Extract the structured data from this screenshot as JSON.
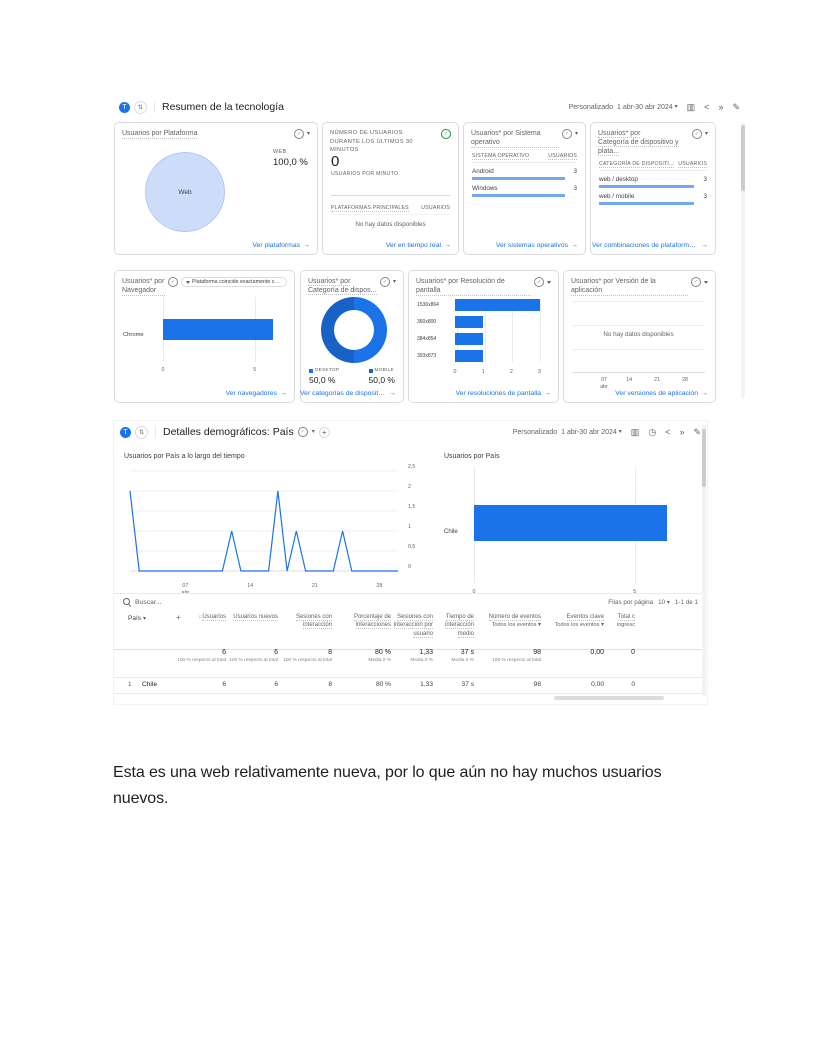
{
  "icons": {
    "arrow_right": "→",
    "caret_down": "▾",
    "check": "✓",
    "plus": "+",
    "sort_desc": "↓",
    "columns": "▥",
    "share": "<",
    "insights": "»",
    "edit": "✎",
    "clock": "◷",
    "swap": "⇅",
    "dot": "▪"
  },
  "colors": {
    "accent": "#1a73e8",
    "bar": "#1a73e8",
    "bar_soft": "rgba(26,115,232,0.62)",
    "pie_fill": "#cdddf9",
    "pie_edge": "#b2cbf5",
    "donut_right": "#1a73e8",
    "donut_left": "#1862c6",
    "link": "#1a73e8",
    "realtime_green": "#1e8e3e"
  },
  "caption": "Esta es una web relativamente nueva, por lo que aún no hay muchos usuarios nuevos.",
  "report1": {
    "avatar_letter": "T",
    "title": "Resumen de la tecnología",
    "personalizado": "Personalizado",
    "date_range": "1 abr-30 abr 2024",
    "platform_card": {
      "title": "Usuarios por Plataforma",
      "slice": "Web",
      "legend_label": "WEB",
      "legend_value": "100,0 %",
      "link": "Ver plataformas"
    },
    "realtime_card": {
      "title": "NÚMERO DE USUARIOS DURANTE LOS ÚLTIMOS 30 MINUTOS",
      "big_value": "0",
      "big_label": "USUARIOS POR MINUTO",
      "col1": "PLATAFORMAS PRINCIPALES",
      "col2": "USUARIOS",
      "empty": "No hay datos disponibles",
      "link": "Ver en tiempo real"
    },
    "os_card": {
      "title": "Usuarios* por Sistema operativo",
      "col1": "SISTEMA OPERATIVO",
      "col2": "USUARIOS",
      "rows": [
        {
          "label": "Android",
          "value": "3",
          "num": 3
        },
        {
          "label": "Windows",
          "value": "3",
          "num": 3
        }
      ],
      "axis_max": 3.4,
      "link": "Ver sistemas operativos"
    },
    "combo_card": {
      "title1": "Usuarios* por",
      "title2": "Categoría de dispositivo y plata...",
      "col1": "CATEGORÍA DE DISPOSITI...",
      "col2": "USUARIOS",
      "rows": [
        {
          "label": "web / desktop",
          "value": "3",
          "num": 3
        },
        {
          "label": "web / mobile",
          "value": "3",
          "num": 3
        }
      ],
      "axis_max": 3.4,
      "link": "Ver combinaciones de plataformas y dispositi..."
    },
    "browser_card": {
      "title": "Usuarios* por Navegador",
      "chip": "Plataforma coincide exactamente con ...",
      "rows": [
        {
          "label": "Chrome",
          "num": 6
        }
      ],
      "axis_max": 6.6,
      "ticks": [
        "0",
        "5"
      ],
      "link": "Ver navegadores"
    },
    "devcat_card": {
      "title1": "Usuarios* por",
      "title2": "Categoría de dispos...",
      "legend": [
        {
          "label": "DESKTOP",
          "value": "50,0 %"
        },
        {
          "label": "MOBILE",
          "value": "50,0 %"
        }
      ],
      "link": "Ver categorías de dispositivo"
    },
    "resolution_card": {
      "title": "Usuarios* por Resolución de pantalla",
      "rows": [
        {
          "label": "1536x864",
          "num": 3
        },
        {
          "label": "360x800",
          "num": 1
        },
        {
          "label": "384x854",
          "num": 1
        },
        {
          "label": "393x873",
          "num": 1
        }
      ],
      "axis_max": 3.3,
      "ticks": [
        "0",
        "1",
        "2",
        "3"
      ],
      "link": "Ver resoluciones de pantalla"
    },
    "appver_card": {
      "title": "Usuarios* por Versión de la aplicación",
      "empty": "No hay datos disponibles",
      "ticks": [
        {
          "a": "07",
          "b": "abr"
        },
        {
          "a": "14"
        },
        {
          "a": "21"
        },
        {
          "a": "28"
        }
      ],
      "link": "Ver versiones de aplicación"
    }
  },
  "report2": {
    "avatar_letter": "T",
    "title": "Detalles demográficos: País",
    "personalizado": "Personalizado",
    "date_range": "1 abr-30 abr 2024",
    "line_chart": {
      "title": "Usuarios por País a lo largo del tiempo",
      "y_ticks": [
        "2,5",
        "2",
        "1,5",
        "1",
        "0,5",
        "0"
      ],
      "y_max": 2.5,
      "x_ticks": [
        {
          "a": "07",
          "b": "abr"
        },
        {
          "a": "14"
        },
        {
          "a": "21"
        },
        {
          "a": "28"
        }
      ],
      "values": [
        2,
        0,
        0,
        0,
        0,
        0,
        0,
        0,
        0,
        0,
        0,
        1,
        0,
        0,
        0,
        0,
        2,
        0,
        1,
        0,
        0,
        0,
        0,
        1,
        0,
        0,
        0,
        0,
        0,
        0
      ]
    },
    "bar_chart": {
      "title": "Usuarios por País",
      "rows": [
        {
          "label": "Chile",
          "num": 6
        }
      ],
      "axis_max": 6.6,
      "ticks": [
        "0",
        "5"
      ]
    },
    "table": {
      "search": "Buscar...",
      "rows_per_page_label": "Filas por página",
      "rows_per_page": "10",
      "range_label": "1-1 de 1",
      "dim": "País",
      "cols": [
        {
          "t": "Usuarios"
        },
        {
          "t": "Usuarios nuevos"
        },
        {
          "t": "Sesiones con interacción"
        },
        {
          "t": "Porcentaje de interacciones"
        },
        {
          "t": "Sesiones con interacción por usuario"
        },
        {
          "t": "Tiempo de interacción medio"
        },
        {
          "t": "Número de eventos",
          "s": "Todos los eventos"
        },
        {
          "t": "Eventos clave",
          "s": "Todos los eventos"
        },
        {
          "t": "Total c",
          "s2": "ingresc"
        }
      ],
      "totals": {
        "v": [
          "6",
          "6",
          "8",
          "80 %",
          "1,33",
          "37 s",
          "98",
          "0,00",
          "0"
        ],
        "s": [
          "100 % respecto al total",
          "100 % respecto al total",
          "100 % respecto al total",
          "Media 0 %",
          "Media 0 %",
          "Media 0 %",
          "100 % respecto al total",
          "",
          ""
        ]
      },
      "row": {
        "index": "1",
        "name": "Chile",
        "v": [
          "6",
          "6",
          "8",
          "80 %",
          "1,33",
          "37 s",
          "98",
          "0,00",
          "0"
        ]
      }
    }
  }
}
